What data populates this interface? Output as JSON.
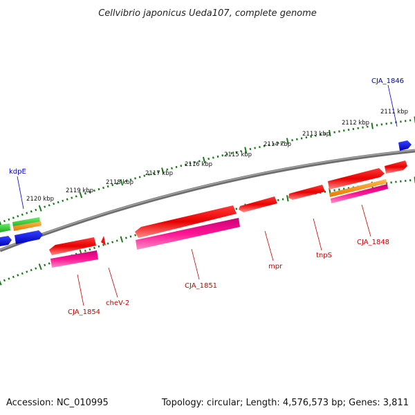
{
  "title": "Cellvibrio japonicus Ueda107, complete genome",
  "footer": {
    "accession": "Accession: NC_010995",
    "topology": "Topology: circular; Length: 4,576,573 bp; Genes: 3,811"
  },
  "kbp_ticks": [
    "2111 kbp",
    "2112 kbp",
    "2113 kbp",
    "2114 kbp",
    "2115 kbp",
    "2116 kbp",
    "2117 kbp",
    "2118 kbp",
    "2119 kbp",
    "2120 kbp"
  ],
  "gene_labels": {
    "cja_1846": "CJA_1846",
    "kdpe": "kdpE",
    "cja_1848": "CJA_1848",
    "tnps": "tnpS",
    "mpr": "mpr",
    "cja_1851": "CJA_1851",
    "chev2": "cheV-2",
    "cja_1854": "CJA_1854"
  },
  "colors": {
    "backbone": "#808080",
    "tick": "#1a7a1a",
    "red": "#ee1111",
    "magenta": "#ff1a8c",
    "orange": "#ff9900",
    "green": "#33cc33",
    "blue": "#0000ee",
    "label_blue": "#0000cc",
    "label_red": "#cc0000"
  }
}
